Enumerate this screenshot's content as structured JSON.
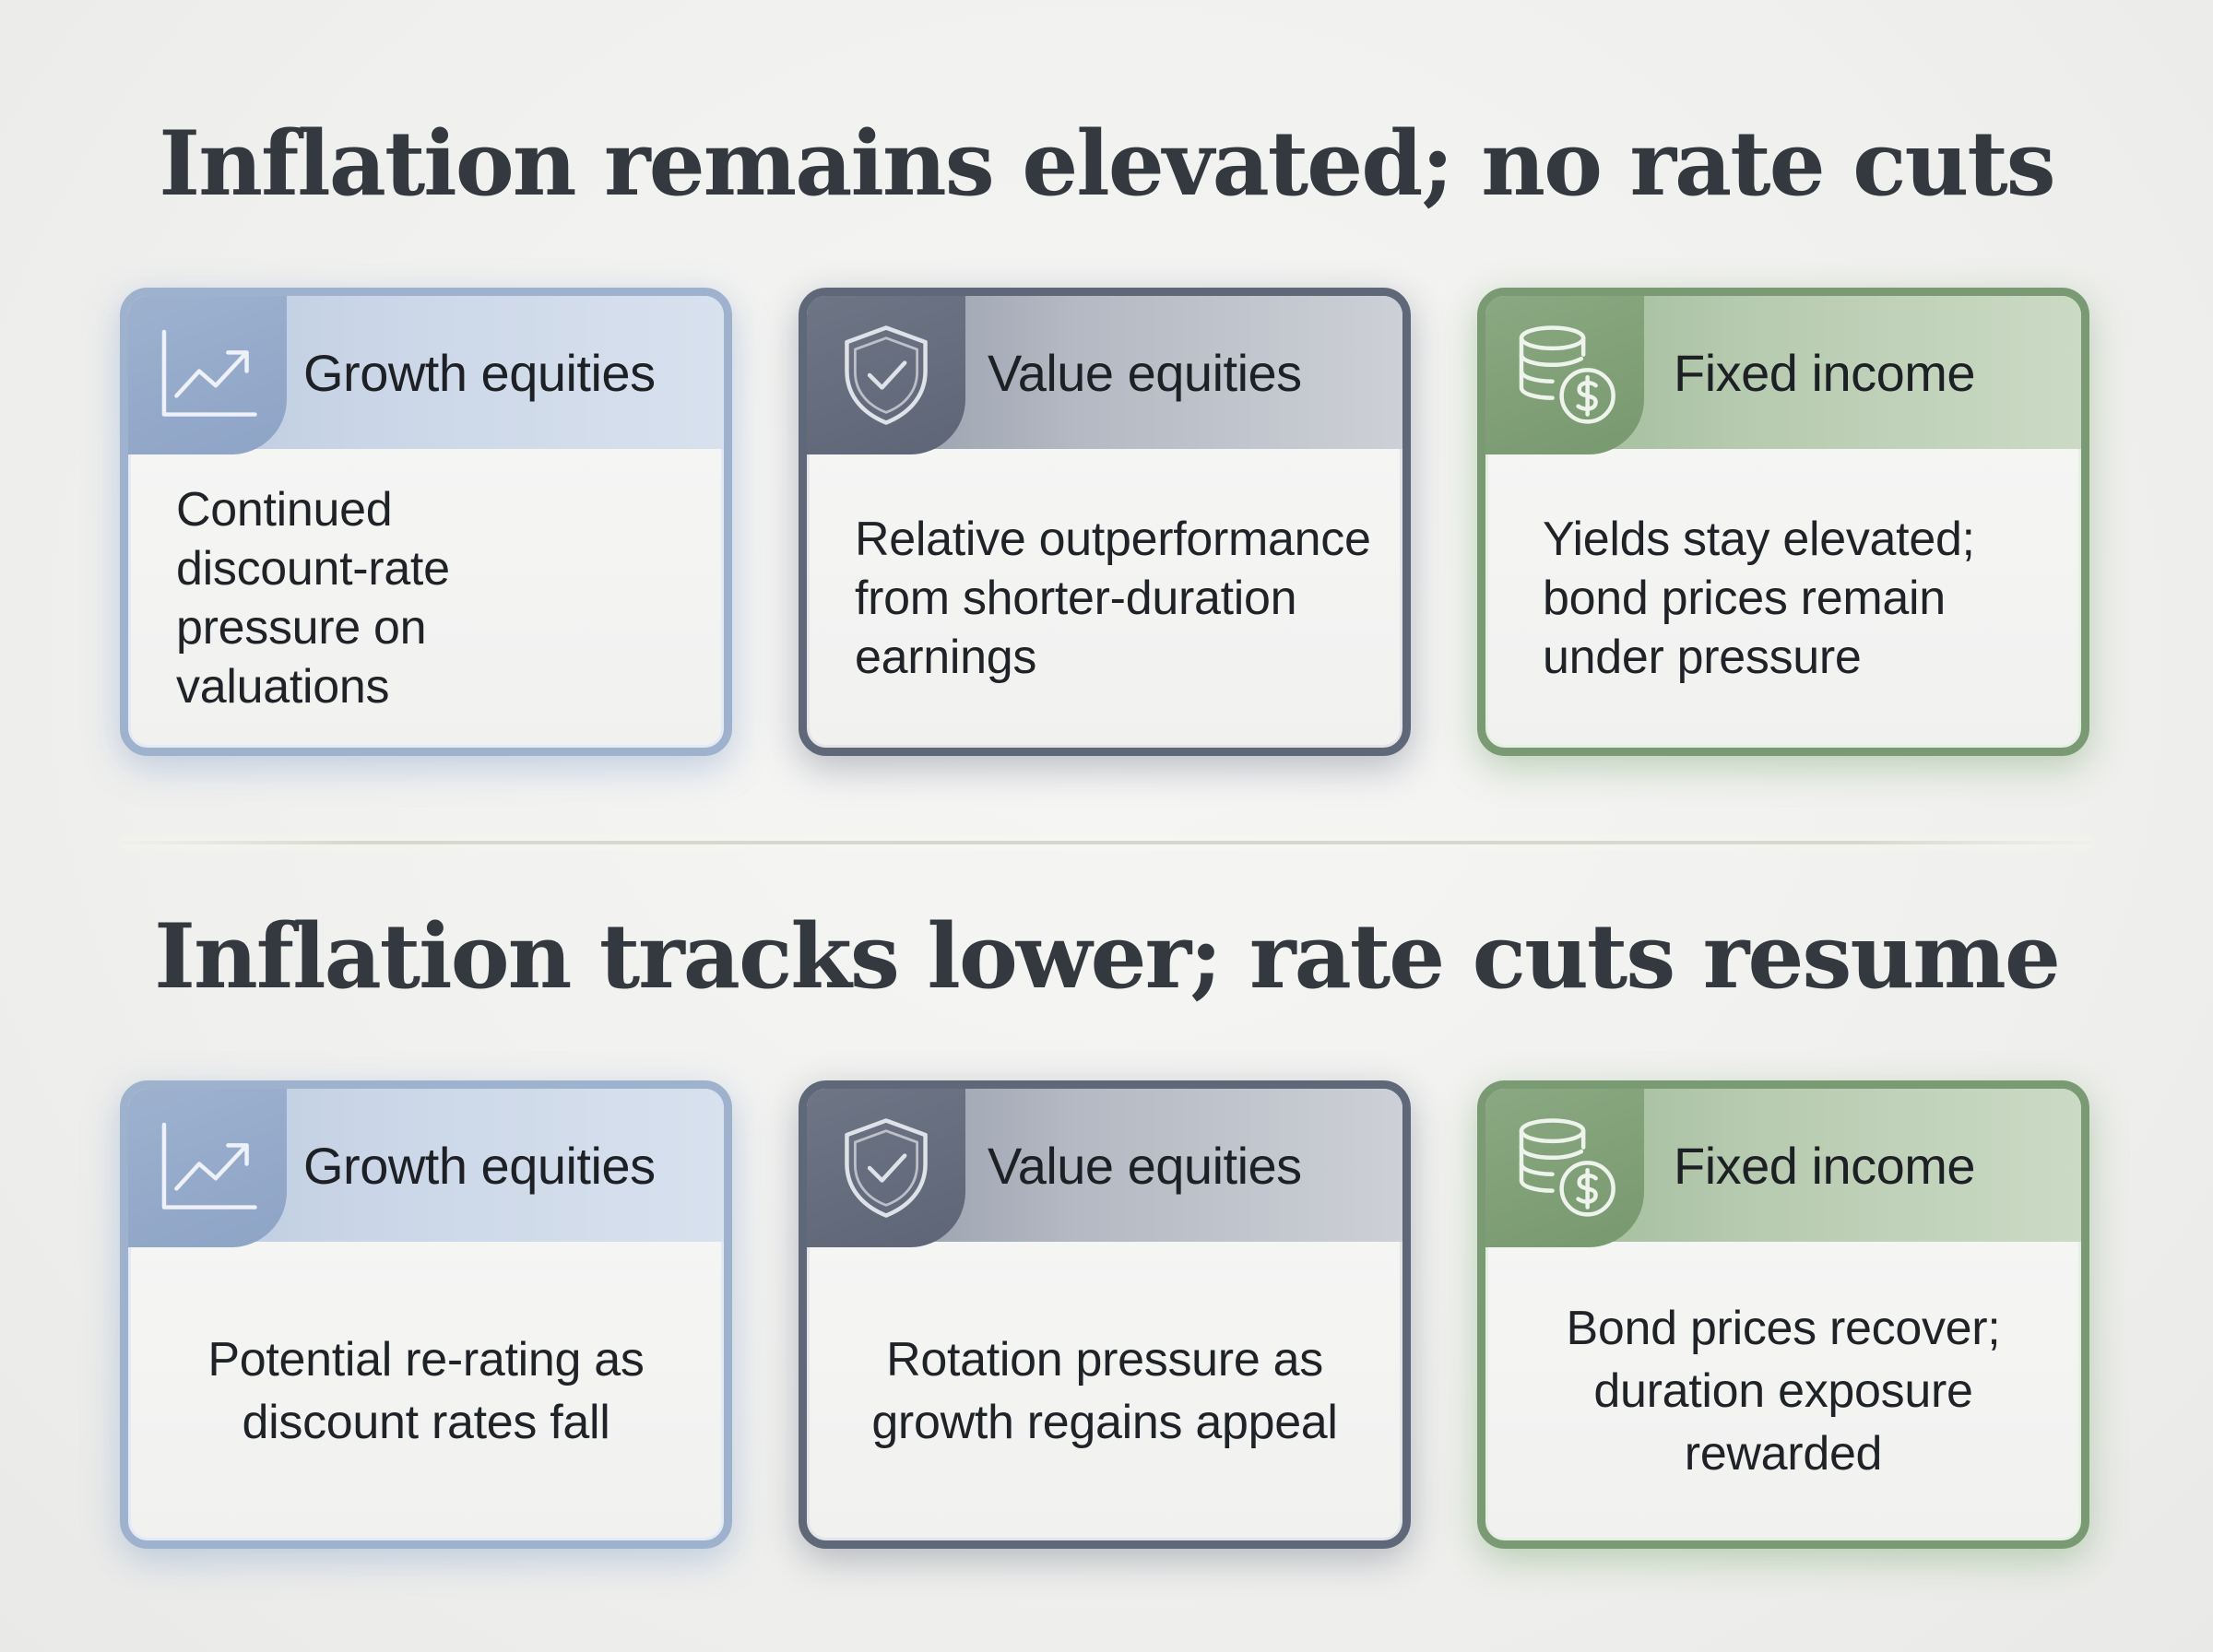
{
  "sections": [
    {
      "title": "Inflation remains elevated; no rate cuts",
      "cards": [
        {
          "icon": "chart-line-icon",
          "title": "Growth equities",
          "body": "Continued discount-rate pressure on valuations",
          "color": "#9fb2cd"
        },
        {
          "icon": "shield-check-icon",
          "title": "Value equities",
          "body": "Relative outperformance from shorter-duration earnings",
          "color": "#5f6878"
        },
        {
          "icon": "coins-dollar-icon",
          "title": "Fixed income",
          "body": "Yields stay elevated; bond prices remain under pressure",
          "color": "#7a9a73"
        }
      ]
    },
    {
      "title": "Inflation tracks lower; rate cuts resume",
      "cards": [
        {
          "icon": "chart-line-icon",
          "title": "Growth equities",
          "body": "Potential re-rating as discount rates fall",
          "color": "#9fb2cd"
        },
        {
          "icon": "shield-check-icon",
          "title": "Value equities",
          "body": "Rotation pressure as growth regains appeal",
          "color": "#5f6878"
        },
        {
          "icon": "coins-dollar-icon",
          "title": "Fixed income",
          "body": "Bond prices recover; duration exposure rewarded",
          "color": "#7a9a73"
        }
      ]
    }
  ]
}
